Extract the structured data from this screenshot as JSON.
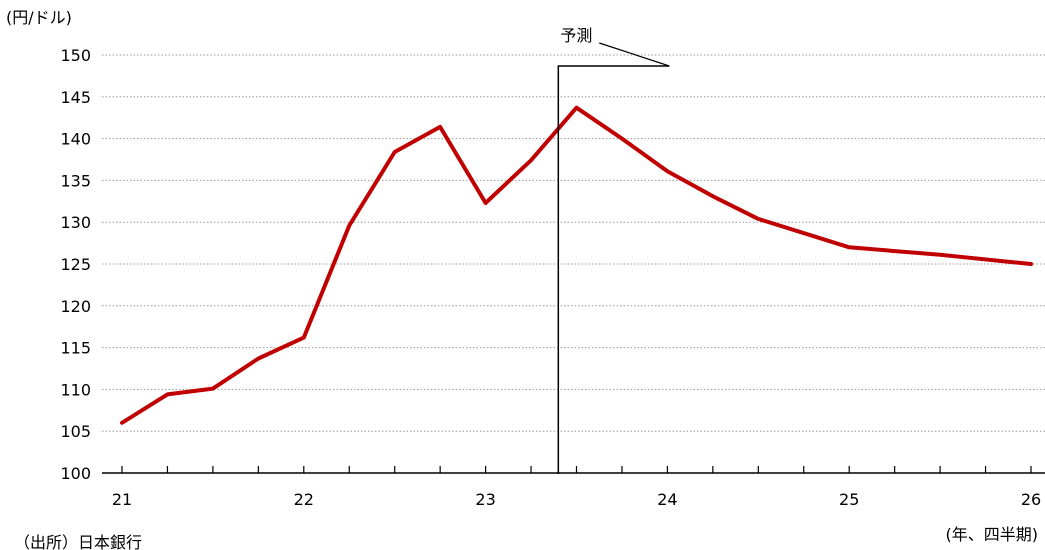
{
  "chart_data": {
    "type": "line",
    "y_unit_label": "(円/ドル)",
    "x_unit_label": "(年、四半期)",
    "source": "（出所）日本銀行",
    "forecast_label": "予測",
    "forecast_start_x": 23.4,
    "ylim": [
      100,
      150
    ],
    "yticks": [
      100,
      105,
      110,
      115,
      120,
      125,
      130,
      135,
      140,
      145,
      150
    ],
    "xlim": [
      21,
      26
    ],
    "xtick_labels": [
      "21",
      "22",
      "23",
      "24",
      "25",
      "26"
    ],
    "quarter_ticks": [
      21,
      21.25,
      21.5,
      21.75,
      22,
      22.25,
      22.5,
      22.75,
      23,
      23.25,
      23.5,
      23.75,
      24,
      24.25,
      24.5,
      24.75,
      25,
      25.25,
      25.5,
      25.75,
      26
    ],
    "grid": true,
    "color": "#C00000",
    "series": [
      {
        "name": "",
        "points": [
          [
            21.0,
            106.0
          ],
          [
            21.25,
            109.4
          ],
          [
            21.5,
            110.1
          ],
          [
            21.75,
            113.7
          ],
          [
            22.0,
            116.2
          ],
          [
            22.25,
            129.6
          ],
          [
            22.5,
            138.4
          ],
          [
            22.75,
            141.4
          ],
          [
            23.0,
            132.3
          ],
          [
            23.25,
            137.4
          ],
          [
            23.5,
            143.7
          ],
          [
            23.75,
            140.0
          ],
          [
            24.0,
            136.1
          ],
          [
            24.25,
            133.1
          ],
          [
            24.5,
            130.4
          ],
          [
            25.0,
            127.0
          ],
          [
            25.5,
            126.1
          ],
          [
            26.0,
            125.0
          ]
        ]
      }
    ]
  }
}
